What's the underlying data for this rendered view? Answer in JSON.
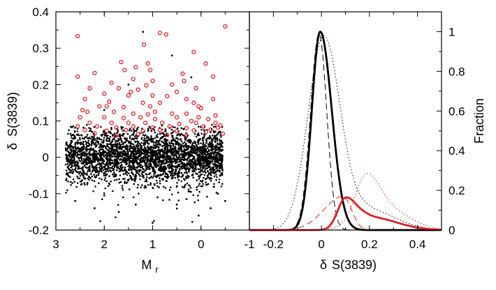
{
  "chart_data": [
    {
      "type": "scatter",
      "panel": "left",
      "xlabel_main": "M",
      "xlabel_sub": "r",
      "ylabel_delta": "δ",
      "ylabel_main": "S(3839)",
      "xlim": [
        3,
        -1
      ],
      "ylim": [
        -0.2,
        0.4
      ],
      "x_ticks": [
        3,
        2,
        1,
        0,
        -1
      ],
      "x_tick_labels": [
        "3",
        "2",
        "1",
        "0",
        "-1"
      ],
      "y_ticks": [
        -0.2,
        -0.1,
        0,
        0.1,
        0.2,
        0.3,
        0.4
      ],
      "y_tick_labels": [
        "-0.2",
        "-0.1",
        "0",
        "0.1",
        "0.2",
        "0.3",
        "0.4"
      ],
      "grid": false,
      "series": [
        {
          "marker": "filled-dot",
          "color": "#000000",
          "distribution": {
            "count": 3200,
            "x_range": [
              2.8,
              -0.45
            ],
            "y_center": 0.0,
            "y_sigma": 0.035
          }
        },
        {
          "marker": "open-circle",
          "color": "#dd1f26",
          "points": [
            [
              2.55,
              0.333
            ],
            [
              0.85,
              0.342
            ],
            [
              0.72,
              0.338
            ],
            [
              1.18,
              0.31
            ],
            [
              -0.5,
              0.36
            ],
            [
              0.15,
              0.29
            ],
            [
              1.65,
              0.262
            ],
            [
              1.35,
              0.248
            ],
            [
              1.1,
              0.258
            ],
            [
              1.05,
              0.24
            ],
            [
              2.2,
              0.232
            ],
            [
              1.58,
              0.24
            ],
            [
              0.38,
              0.23
            ],
            [
              2.55,
              0.222
            ],
            [
              -0.1,
              0.258
            ],
            [
              -0.25,
              0.222
            ],
            [
              1.4,
              0.215
            ],
            [
              1.85,
              0.205
            ],
            [
              1.13,
              0.198
            ],
            [
              1.0,
              0.21
            ],
            [
              0.6,
              0.2
            ],
            [
              2.3,
              0.19
            ],
            [
              1.7,
              0.19
            ],
            [
              1.3,
              0.186
            ],
            [
              0.5,
              0.18
            ],
            [
              0.1,
              0.19
            ],
            [
              2.0,
              0.175
            ],
            [
              1.5,
              0.17
            ],
            [
              1.0,
              0.17
            ],
            [
              0.7,
              0.168
            ],
            [
              0.3,
              0.16
            ],
            [
              2.4,
              0.16
            ],
            [
              1.9,
              0.153
            ],
            [
              1.2,
              0.15
            ],
            [
              0.85,
              0.15
            ],
            [
              0.15,
              0.15
            ],
            [
              -0.25,
              0.16
            ],
            [
              2.1,
              0.14
            ],
            [
              1.6,
              0.138
            ],
            [
              1.05,
              0.14
            ],
            [
              0.05,
              0.14
            ],
            [
              2.45,
              0.13
            ],
            [
              2.35,
              0.125
            ],
            [
              1.8,
              0.125
            ],
            [
              1.4,
              0.12
            ],
            [
              1.1,
              0.118
            ],
            [
              0.6,
              0.12
            ],
            [
              0.3,
              0.12
            ],
            [
              2.5,
              0.11
            ],
            [
              2.0,
              0.11
            ],
            [
              1.6,
              0.108
            ],
            [
              1.25,
              0.11
            ],
            [
              0.95,
              0.105
            ],
            [
              0.5,
              0.11
            ],
            [
              0.05,
              0.11
            ],
            [
              -0.15,
              0.105
            ],
            [
              2.3,
              0.095
            ],
            [
              1.85,
              0.095
            ],
            [
              1.5,
              0.095
            ],
            [
              1.15,
              0.095
            ],
            [
              0.8,
              0.095
            ],
            [
              0.45,
              0.092
            ],
            [
              0.1,
              0.095
            ],
            [
              -0.3,
              0.095
            ],
            [
              2.55,
              0.085
            ],
            [
              2.15,
              0.085
            ],
            [
              1.75,
              0.082
            ],
            [
              1.4,
              0.085
            ],
            [
              1.0,
              0.082
            ],
            [
              0.65,
              0.085
            ],
            [
              0.3,
              0.08
            ],
            [
              -0.05,
              0.085
            ],
            [
              -0.35,
              0.082
            ],
            [
              2.4,
              0.075
            ],
            [
              1.95,
              0.073
            ],
            [
              1.55,
              0.075
            ],
            [
              1.2,
              0.072
            ],
            [
              0.85,
              0.075
            ],
            [
              0.5,
              0.072
            ],
            [
              0.15,
              0.074
            ],
            [
              -0.2,
              0.076
            ],
            [
              -0.4,
              0.088
            ],
            [
              0.2,
              0.1
            ],
            [
              -0.1,
              0.07
            ],
            [
              1.3,
              0.064
            ],
            [
              0.7,
              0.062
            ],
            [
              2.2,
              0.066
            ],
            [
              0.3,
              0.06
            ],
            [
              -0.45,
              0.065
            ],
            [
              1.75,
              0.06
            ],
            [
              0.95,
              0.125
            ],
            [
              0.0,
              0.135
            ],
            [
              1.45,
              0.18
            ],
            [
              0.35,
              0.21
            ],
            [
              1.95,
              0.14
            ],
            [
              -0.3,
              0.115
            ]
          ]
        }
      ]
    },
    {
      "type": "line",
      "panel": "right",
      "xlabel_delta": "δ",
      "xlabel_main": "S(3839)",
      "ylabel": "Fraction",
      "xlim": [
        -0.3,
        0.5
      ],
      "ylim": [
        0,
        1.1
      ],
      "x_ticks": [
        -0.2,
        0,
        0.2,
        0.4
      ],
      "x_tick_labels": [
        "-0.2",
        "0",
        "0.2",
        "0.4"
      ],
      "y_ticks": [
        0,
        0.2,
        0.4,
        0.6,
        0.8,
        1.0
      ],
      "y_tick_labels": [
        "0",
        "0.2",
        "0.4",
        "0.6",
        "0.8",
        "1"
      ],
      "grid": false,
      "series": [
        {
          "color": "#000000",
          "style": "solid",
          "width": 2.8,
          "components": [
            {
              "amp": 1.0,
              "mu": -0.005,
              "sl": 0.035,
              "sr": 0.048
            }
          ]
        },
        {
          "color": "#000000",
          "style": "dashed",
          "width": 1.0,
          "components": [
            {
              "amp": 0.99,
              "mu": -0.01,
              "sl": 0.035,
              "sr": 0.032
            }
          ]
        },
        {
          "color": "#000000",
          "style": "dotted",
          "width": 1.0,
          "components": [
            {
              "amp": 0.98,
              "mu": 0.01,
              "sl": 0.065,
              "sr": 0.07
            },
            {
              "amp": 0.1,
              "mu": 0.2,
              "sl": 0.06,
              "sr": 0.11
            }
          ]
        },
        {
          "color": "#dd1f26",
          "style": "solid",
          "width": 2.8,
          "components": [
            {
              "amp": 0.155,
              "mu": 0.1,
              "sl": 0.033,
              "sr": 0.045
            },
            {
              "amp": 0.065,
              "mu": 0.2,
              "sl": 0.05,
              "sr": 0.11
            }
          ]
        },
        {
          "color": "#dd1f26",
          "style": "dashed",
          "width": 1.0,
          "components": [
            {
              "amp": 0.17,
              "mu": 0.09,
              "sl": 0.08,
              "sr": 0.035
            }
          ]
        },
        {
          "color": "#dd1f26",
          "style": "dotted",
          "width": 1.0,
          "components": [
            {
              "amp": 0.22,
              "mu": 0.185,
              "sl": 0.045,
              "sr": 0.055
            },
            {
              "amp": 0.1,
              "mu": 0.28,
              "sl": 0.1,
              "sr": 0.09
            }
          ]
        }
      ]
    }
  ]
}
